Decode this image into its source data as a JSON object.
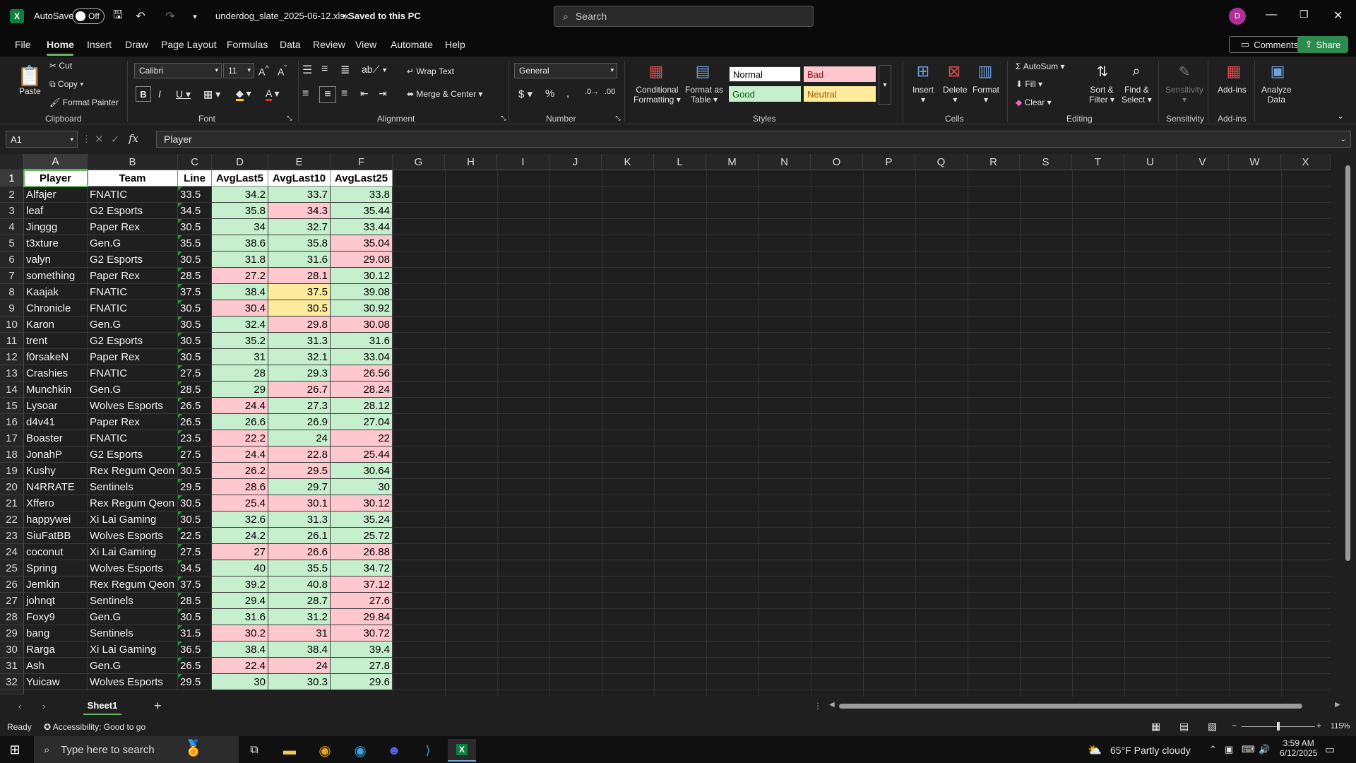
{
  "titlebar": {
    "autosave_label": "AutoSave",
    "autosave_state": "Off",
    "filename": "underdog_slate_2025-06-12.xlsx",
    "saved_status": "• Saved to this PC",
    "search_placeholder": "Search",
    "avatar_initial": "D"
  },
  "menu": [
    "File",
    "Home",
    "Insert",
    "Draw",
    "Page Layout",
    "Formulas",
    "Data",
    "Review",
    "View",
    "Automate",
    "Help"
  ],
  "comments_label": "Comments",
  "share_label": "Share",
  "ribbon": {
    "clipboard": {
      "paste": "Paste",
      "cut": "Cut",
      "copy": "Copy",
      "format_painter": "Format Painter",
      "label": "Clipboard"
    },
    "font": {
      "name": "Calibri",
      "size": "11",
      "label": "Font"
    },
    "alignment": {
      "wrap": "Wrap Text",
      "merge": "Merge & Center",
      "label": "Alignment"
    },
    "number": {
      "format": "General",
      "label": "Number"
    },
    "styles": {
      "conditional": "Conditional",
      "conditional2": "Formatting",
      "format_table": "Format as",
      "format_table2": "Table",
      "normal": "Normal",
      "bad": "Bad",
      "good": "Good",
      "neutral": "Neutral",
      "label": "Styles"
    },
    "cells": {
      "insert": "Insert",
      "delete": "Delete",
      "format": "Format",
      "label": "Cells"
    },
    "editing": {
      "autosum": "AutoSum",
      "fill": "Fill",
      "clear": "Clear",
      "sort": "Sort &",
      "sort2": "Filter",
      "find": "Find &",
      "find2": "Select",
      "label": "Editing"
    },
    "sensitivity": {
      "btn": "Sensitivity",
      "label": "Sensitivity"
    },
    "addins": {
      "btn": "Add-ins",
      "label": "Add-ins"
    },
    "analyze": {
      "btn": "Analyze",
      "btn2": "Data"
    }
  },
  "formula_bar": {
    "name_box": "A1",
    "value": "Player"
  },
  "columns": [
    "A",
    "B",
    "C",
    "D",
    "E",
    "F",
    "G",
    "H",
    "I",
    "J",
    "K",
    "L",
    "M",
    "N",
    "O",
    "P",
    "Q",
    "R",
    "S",
    "T",
    "U",
    "V",
    "W",
    "X"
  ],
  "header_row": [
    "Player",
    "Team",
    "Line",
    "AvgLast5",
    "AvgLast10",
    "AvgLast25"
  ],
  "rows": [
    [
      "Alfajer",
      "FNATIC",
      "33.5",
      "34.2",
      "33.7",
      "33.8"
    ],
    [
      "leaf",
      "G2 Esports",
      "34.5",
      "35.8",
      "34.3",
      "35.44"
    ],
    [
      "Jinggg",
      "Paper Rex",
      "30.5",
      "34",
      "32.7",
      "33.44"
    ],
    [
      "t3xture",
      "Gen.G",
      "35.5",
      "38.6",
      "35.8",
      "35.04"
    ],
    [
      "valyn",
      "G2 Esports",
      "30.5",
      "31.8",
      "31.6",
      "29.08"
    ],
    [
      "something",
      "Paper Rex",
      "28.5",
      "27.2",
      "28.1",
      "30.12"
    ],
    [
      "Kaajak",
      "FNATIC",
      "37.5",
      "38.4",
      "37.5",
      "39.08"
    ],
    [
      "Chronicle",
      "FNATIC",
      "30.5",
      "30.4",
      "30.5",
      "30.92"
    ],
    [
      "Karon",
      "Gen.G",
      "30.5",
      "32.4",
      "29.8",
      "30.08"
    ],
    [
      "trent",
      "G2 Esports",
      "30.5",
      "35.2",
      "31.3",
      "31.6"
    ],
    [
      "f0rsakeN",
      "Paper Rex",
      "30.5",
      "31",
      "32.1",
      "33.04"
    ],
    [
      "Crashies",
      "FNATIC",
      "27.5",
      "28",
      "29.3",
      "26.56"
    ],
    [
      "Munchkin",
      "Gen.G",
      "28.5",
      "29",
      "26.7",
      "28.24"
    ],
    [
      "Lysoar",
      "Wolves Esports",
      "26.5",
      "24.4",
      "27.3",
      "28.12"
    ],
    [
      "d4v41",
      "Paper Rex",
      "26.5",
      "26.6",
      "26.9",
      "27.04"
    ],
    [
      "Boaster",
      "FNATIC",
      "23.5",
      "22.2",
      "24",
      "22"
    ],
    [
      "JonahP",
      "G2 Esports",
      "27.5",
      "24.4",
      "22.8",
      "25.44"
    ],
    [
      "Kushy",
      "Rex Regum Qeon",
      "30.5",
      "26.2",
      "29.5",
      "30.64"
    ],
    [
      "N4RRATE",
      "Sentinels",
      "29.5",
      "28.6",
      "29.7",
      "30"
    ],
    [
      "Xffero",
      "Rex Regum Qeon",
      "30.5",
      "25.4",
      "30.1",
      "30.12"
    ],
    [
      "happywei",
      "Xi Lai Gaming",
      "30.5",
      "32.6",
      "31.3",
      "35.24"
    ],
    [
      "SiuFatBB",
      "Wolves Esports",
      "22.5",
      "24.2",
      "26.1",
      "25.72"
    ],
    [
      "coconut",
      "Xi Lai Gaming",
      "27.5",
      "27",
      "26.6",
      "26.88"
    ],
    [
      "Spring",
      "Wolves Esports",
      "34.5",
      "40",
      "35.5",
      "34.72"
    ],
    [
      "Jemkin",
      "Rex Regum Qeon",
      "37.5",
      "39.2",
      "40.8",
      "37.12"
    ],
    [
      "johnqt",
      "Sentinels",
      "28.5",
      "29.4",
      "28.7",
      "27.6"
    ],
    [
      "Foxy9",
      "Gen.G",
      "30.5",
      "31.6",
      "31.2",
      "29.84"
    ],
    [
      "bang",
      "Sentinels",
      "31.5",
      "30.2",
      "31",
      "30.72"
    ],
    [
      "Rarga",
      "Xi Lai Gaming",
      "36.5",
      "38.4",
      "38.4",
      "39.4"
    ],
    [
      "Ash",
      "Gen.G",
      "26.5",
      "22.4",
      "24",
      "27.8"
    ],
    [
      "Yuicaw",
      "Wolves Esports",
      "29.5",
      "30",
      "30.3",
      "29.6"
    ]
  ],
  "sheet_tab": "Sheet1",
  "status": {
    "ready": "Ready",
    "accessibility": "Accessibility: Good to go",
    "zoom": "115%"
  },
  "taskbar": {
    "search_placeholder": "Type here to search",
    "weather": "65°F  Partly cloudy",
    "time": "3:59 AM",
    "date": "6/12/2025"
  }
}
